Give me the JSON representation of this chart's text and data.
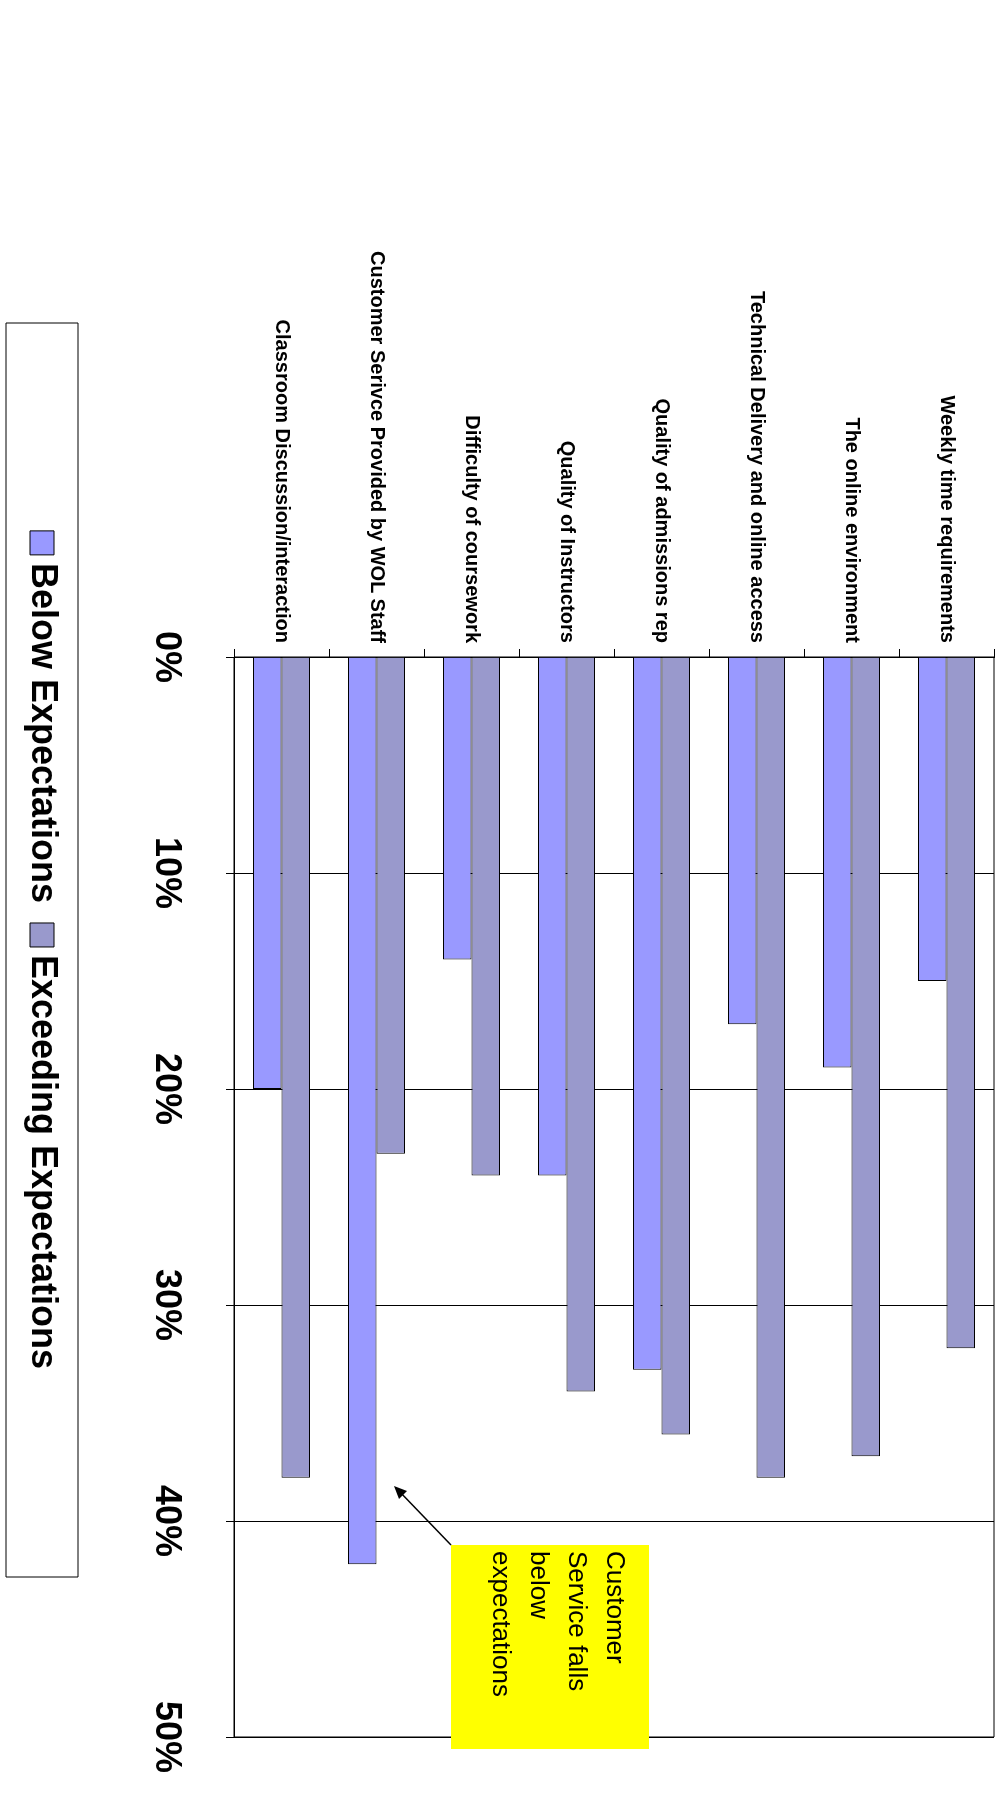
{
  "chart_data": {
    "type": "bar",
    "categories": [
      "Classroom Discussion/interaction",
      "Customer Serivce Provided by WOL Staff",
      "Difficulty of coursework",
      "Quality of Instructors",
      "Quality of admissions rep",
      "Technical Delivery and online access",
      "The online environment",
      "Weekly time requirements"
    ],
    "series": [
      {
        "name": "Below Expectations",
        "color": "#9999ff",
        "values": [
          20,
          42,
          14,
          24,
          33,
          17,
          19,
          15
        ]
      },
      {
        "name": "Exceeding Expectations",
        "color": "#9999cc",
        "values": [
          38,
          23,
          24,
          34,
          36,
          38,
          37,
          32
        ]
      }
    ],
    "ylim": [
      50,
      0
    ],
    "yticks": [
      {
        "value": 0,
        "label": "0%"
      },
      {
        "value": 10,
        "label": "10%"
      },
      {
        "value": 20,
        "label": "20%"
      },
      {
        "value": 30,
        "label": "30%"
      },
      {
        "value": 40,
        "label": "40%"
      },
      {
        "value": 50,
        "label": "50%"
      }
    ],
    "grid": "y",
    "legend": "left",
    "annotations": [
      "Customer Service falls below expectations"
    ]
  }
}
